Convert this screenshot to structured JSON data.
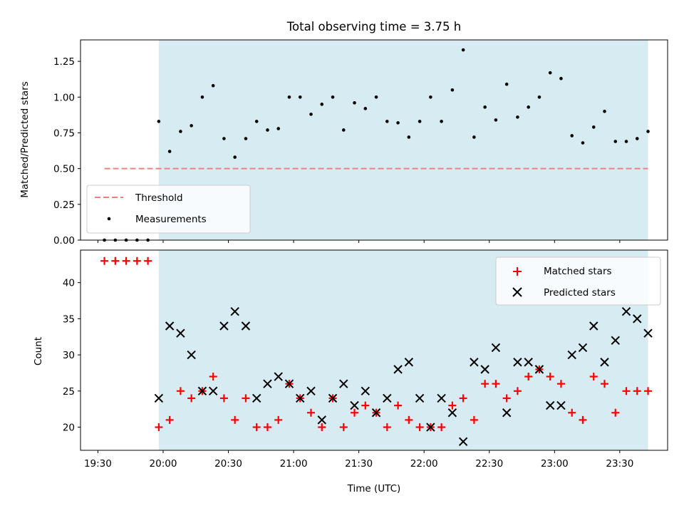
{
  "chart_data": [
    {
      "type": "scatter",
      "title": "Total observing time = 3.75 h",
      "ylabel": "Matched/Predicted stars",
      "xlabel": "",
      "ylim": [
        0.0,
        1.4
      ],
      "xlim": [
        "19:22",
        "23:52"
      ],
      "yticks": [
        "0.00",
        "0.25",
        "0.50",
        "0.75",
        "1.00",
        "1.25"
      ],
      "grid": false,
      "legend": "lower left",
      "shaded_interval": [
        "19:58",
        "23:43"
      ],
      "shade_color": "#add8e6",
      "threshold": {
        "name": "Threshold",
        "y": 0.5,
        "x": [
          "19:33",
          "23:43"
        ],
        "color": "#f08080"
      },
      "series": [
        {
          "name": "Measurements",
          "color": "#000000",
          "x": [
            "19:33",
            "19:38",
            "19:43",
            "19:48",
            "19:53",
            "19:58",
            "20:03",
            "20:08",
            "20:13",
            "20:18",
            "20:23",
            "20:28",
            "20:33",
            "20:38",
            "20:43",
            "20:48",
            "20:53",
            "20:58",
            "21:03",
            "21:08",
            "21:13",
            "21:18",
            "21:23",
            "21:28",
            "21:33",
            "21:38",
            "21:43",
            "21:48",
            "21:53",
            "21:58",
            "22:03",
            "22:08",
            "22:13",
            "22:18",
            "22:23",
            "22:28",
            "22:33",
            "22:38",
            "22:43",
            "22:48",
            "22:53",
            "22:58",
            "23:03",
            "23:08",
            "23:13",
            "23:18",
            "23:23",
            "23:28",
            "23:33",
            "23:38",
            "23:43"
          ],
          "values": [
            0.0,
            0.0,
            0.0,
            0.0,
            0.0,
            0.83,
            0.62,
            0.76,
            0.8,
            1.0,
            1.08,
            0.71,
            0.58,
            0.71,
            0.83,
            0.77,
            0.78,
            1.0,
            1.0,
            0.88,
            0.95,
            1.0,
            0.77,
            0.96,
            0.92,
            1.0,
            0.83,
            0.82,
            0.72,
            0.83,
            1.0,
            0.83,
            1.05,
            1.33,
            0.72,
            0.93,
            0.84,
            1.09,
            0.86,
            0.93,
            1.0,
            1.17,
            1.13,
            0.73,
            0.68,
            0.79,
            0.9,
            0.69,
            0.69,
            0.71,
            0.76
          ]
        }
      ]
    },
    {
      "type": "scatter",
      "title": "",
      "xlabel": "Time (UTC)",
      "ylabel": "Count",
      "ylim": [
        16.8,
        44.5
      ],
      "xlim": [
        "19:22",
        "23:52"
      ],
      "yticks": [
        "20",
        "25",
        "30",
        "35",
        "40"
      ],
      "xticks": [
        "19:30",
        "20:00",
        "20:30",
        "21:00",
        "21:30",
        "22:00",
        "22:30",
        "23:00",
        "23:30"
      ],
      "grid": false,
      "legend": "upper right",
      "shaded_interval": [
        "19:58",
        "23:43"
      ],
      "shade_color": "#add8e6",
      "series": [
        {
          "name": "Matched stars",
          "marker": "+",
          "color": "#ff0000",
          "x": [
            "19:33",
            "19:38",
            "19:43",
            "19:48",
            "19:53",
            "19:58",
            "20:03",
            "20:08",
            "20:13",
            "20:18",
            "20:23",
            "20:28",
            "20:33",
            "20:38",
            "20:43",
            "20:48",
            "20:53",
            "20:58",
            "21:03",
            "21:08",
            "21:13",
            "21:18",
            "21:23",
            "21:28",
            "21:33",
            "21:38",
            "21:43",
            "21:48",
            "21:53",
            "21:58",
            "22:03",
            "22:08",
            "22:13",
            "22:18",
            "22:23",
            "22:28",
            "22:33",
            "22:38",
            "22:43",
            "22:48",
            "22:53",
            "22:58",
            "23:03",
            "23:08",
            "23:13",
            "23:18",
            "23:23",
            "23:28",
            "23:33",
            "23:38",
            "23:43"
          ],
          "values": [
            43,
            43,
            43,
            43,
            43,
            20,
            21,
            25,
            24,
            25,
            27,
            24,
            21,
            24,
            20,
            20,
            21,
            26,
            24,
            22,
            20,
            24,
            20,
            22,
            23,
            22,
            20,
            23,
            21,
            20,
            20,
            20,
            23,
            24,
            21,
            26,
            26,
            24,
            25,
            27,
            28,
            27,
            26,
            22,
            21,
            27,
            26,
            22,
            25,
            25,
            25
          ]
        },
        {
          "name": "Predicted stars",
          "marker": "x",
          "color": "#000000",
          "x": [
            "19:58",
            "20:03",
            "20:08",
            "20:13",
            "20:18",
            "20:23",
            "20:28",
            "20:33",
            "20:38",
            "20:43",
            "20:48",
            "20:53",
            "20:58",
            "21:03",
            "21:08",
            "21:13",
            "21:18",
            "21:23",
            "21:28",
            "21:33",
            "21:38",
            "21:43",
            "21:48",
            "21:53",
            "21:58",
            "22:03",
            "22:08",
            "22:13",
            "22:18",
            "22:23",
            "22:28",
            "22:33",
            "22:38",
            "22:43",
            "22:48",
            "22:53",
            "22:58",
            "23:03",
            "23:08",
            "23:13",
            "23:18",
            "23:23",
            "23:28",
            "23:33",
            "23:38",
            "23:43"
          ],
          "values": [
            24,
            34,
            33,
            30,
            25,
            25,
            34,
            36,
            34,
            24,
            26,
            27,
            26,
            24,
            25,
            21,
            24,
            26,
            23,
            25,
            22,
            24,
            28,
            29,
            24,
            20,
            24,
            22,
            18,
            29,
            28,
            31,
            22,
            29,
            29,
            28,
            23,
            23,
            30,
            31,
            34,
            29,
            32,
            36,
            35,
            33
          ]
        }
      ]
    }
  ]
}
